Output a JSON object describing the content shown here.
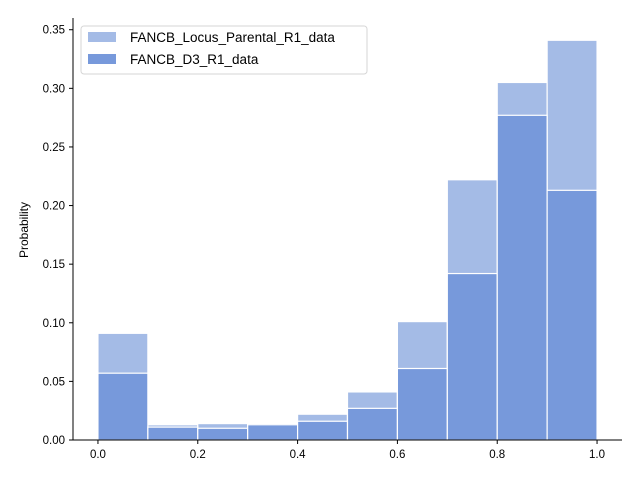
{
  "chart_data": {
    "type": "bar",
    "subtype": "overlaid-histogram",
    "title": "",
    "xlabel": "",
    "ylabel": "Probability",
    "xlim": [
      -0.05,
      1.05
    ],
    "ylim": [
      0,
      0.36
    ],
    "bin_edges": [
      0.0,
      0.1,
      0.2,
      0.3,
      0.4,
      0.5,
      0.6,
      0.7,
      0.8,
      0.9,
      1.0
    ],
    "xticks": [
      "0.0",
      "0.2",
      "0.4",
      "0.6",
      "0.8",
      "1.0"
    ],
    "xtick_values": [
      0.0,
      0.2,
      0.4,
      0.6,
      0.8,
      1.0
    ],
    "yticks": [
      "0.00",
      "0.05",
      "0.10",
      "0.15",
      "0.20",
      "0.25",
      "0.30",
      "0.35"
    ],
    "ytick_values": [
      0.0,
      0.05,
      0.1,
      0.15,
      0.2,
      0.25,
      0.3,
      0.35
    ],
    "grid": false,
    "legend_position": "top-left",
    "series": [
      {
        "name": "FANCB_Locus_Parental_R1_data",
        "color": "#a4bbe6",
        "values": [
          0.091,
          0.013,
          0.014,
          0.014,
          0.022,
          0.041,
          0.101,
          0.222,
          0.305,
          0.341
        ]
      },
      {
        "name": "FANCB_D3_R1_data",
        "color": "#7799db",
        "values": [
          0.057,
          0.011,
          0.01,
          0.013,
          0.016,
          0.027,
          0.061,
          0.142,
          0.277,
          0.213
        ]
      }
    ]
  }
}
